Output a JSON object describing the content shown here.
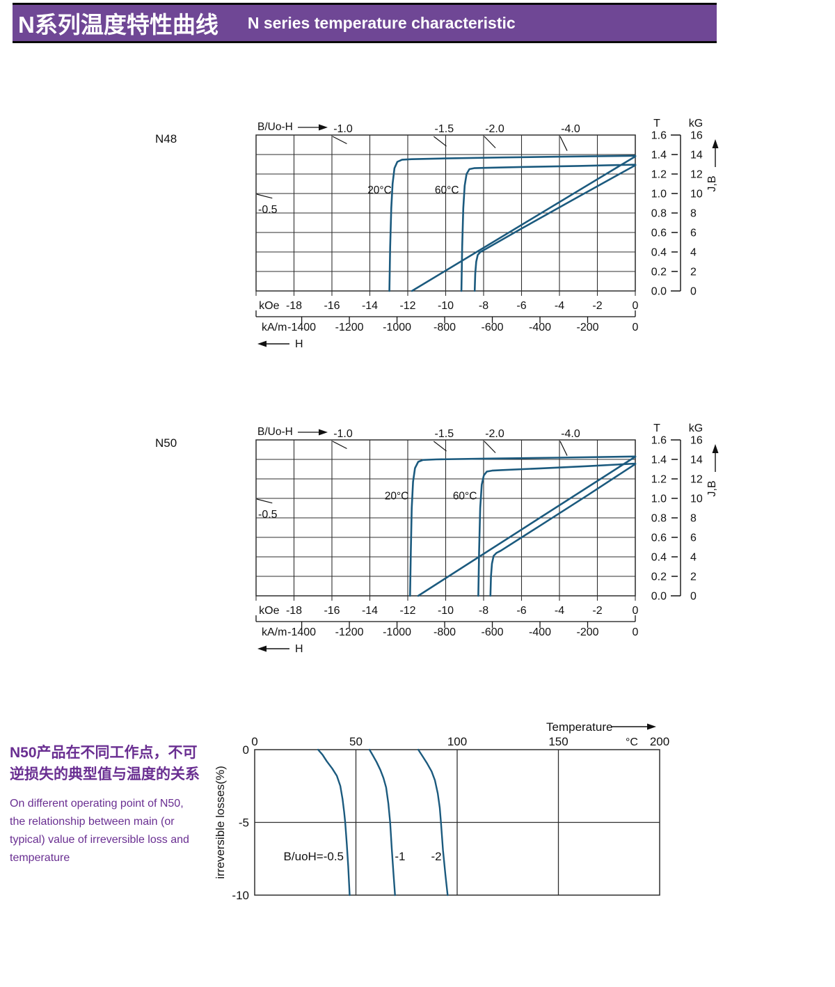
{
  "header": {
    "title_zh": "N系列温度特性曲线",
    "title_en": "N  series temperature characteristic"
  },
  "colors": {
    "banner": "#6f4795",
    "note_text": "#692e91",
    "curve": "#1b5a7e",
    "grid": "#2e2e2e",
    "ink": "#111111"
  },
  "note": {
    "zh_line1": "N50产品在不同工作点，不可",
    "zh_line2": "逆损失的典型值与温度的关系",
    "en_lines": [
      "On different operating point of N50,",
      "the relationship between main (or",
      "typical) value of irreversible loss and",
      "temperature"
    ]
  },
  "chart_data": [
    {
      "type": "line",
      "grade": "N48",
      "top_axis_label": "B/Uo-H",
      "h_axis": {
        "unit": "kOe",
        "min": -20,
        "max": 0,
        "ticks": [
          -18,
          -16,
          -14,
          -12,
          -10,
          -8,
          -6,
          -4,
          -2,
          0
        ]
      },
      "h_axis_secondary": {
        "unit": "kA/m",
        "ticks": [
          -1400,
          -1200,
          -1000,
          -800,
          -600,
          -400,
          -200,
          0
        ],
        "kOe_to_kAm": 79.5775,
        "arrow_label": "H"
      },
      "v_axis": {
        "unit": "T",
        "min": 0,
        "max": 1.6,
        "ticks": [
          "1.6",
          "1.4",
          "1.2",
          "1.0",
          "0.8",
          "0.6",
          "0.4",
          "0.2",
          "0.0"
        ]
      },
      "v_axis_secondary": {
        "unit": "kG",
        "ticks": [
          16,
          14,
          12,
          10,
          8,
          6,
          4,
          2,
          0
        ]
      },
      "v_arrow_label": "J,B",
      "load_lines": [
        {
          "label": "-0.5",
          "value": 0.5
        },
        {
          "label": "-1.0",
          "value": 1.0
        },
        {
          "label": "-1.5",
          "value": 1.5
        },
        {
          "label": "-2.0",
          "value": 2.0
        },
        {
          "label": "-4.0",
          "value": 4.0
        }
      ],
      "curve_labels": [
        {
          "text": "20°C",
          "kOe": -12.85,
          "T": 1.0
        },
        {
          "text": "60°C",
          "kOe": -9.3,
          "T": 1.0
        }
      ],
      "series": [
        {
          "name": "20°C J",
          "points": [
            [
              -12.97,
              0
            ],
            [
              -12.93,
              0.45
            ],
            [
              -12.87,
              0.85
            ],
            [
              -12.8,
              1.1
            ],
            [
              -12.7,
              1.26
            ],
            [
              -12.55,
              1.325
            ],
            [
              -12.3,
              1.347
            ],
            [
              -11.8,
              1.352
            ],
            [
              -10,
              1.36
            ],
            [
              -7,
              1.37
            ],
            [
              -4,
              1.378
            ],
            [
              0,
              1.387
            ]
          ]
        },
        {
          "name": "20°C B",
          "points": [
            [
              -11.78,
              0
            ],
            [
              0,
              1.381
            ]
          ]
        },
        {
          "name": "60°C J",
          "points": [
            [
              -9.17,
              0
            ],
            [
              -9.13,
              0.45
            ],
            [
              -9.07,
              0.85
            ],
            [
              -9.0,
              1.08
            ],
            [
              -8.9,
              1.2
            ],
            [
              -8.75,
              1.25
            ],
            [
              -8.5,
              1.26
            ],
            [
              -8.0,
              1.263
            ],
            [
              -6,
              1.272
            ],
            [
              -3,
              1.283
            ],
            [
              0,
              1.296
            ]
          ]
        },
        {
          "name": "60°C B",
          "points": [
            [
              -8.47,
              0
            ],
            [
              -8.44,
              0.18
            ],
            [
              -8.39,
              0.3
            ],
            [
              -8.31,
              0.37
            ],
            [
              -8.18,
              0.398
            ],
            [
              -8.0,
              0.418
            ],
            [
              -6,
              0.64
            ],
            [
              -3,
              0.967
            ],
            [
              0,
              1.29
            ]
          ]
        }
      ]
    },
    {
      "type": "line",
      "grade": "N50",
      "top_axis_label": "B/Uo-H",
      "h_axis": {
        "unit": "kOe",
        "min": -20,
        "max": 0,
        "ticks": [
          -18,
          -16,
          -14,
          -12,
          -10,
          -8,
          -6,
          -4,
          -2,
          0
        ]
      },
      "h_axis_secondary": {
        "unit": "kA/m",
        "ticks": [
          -1400,
          -1200,
          -1000,
          -800,
          -600,
          -400,
          -200,
          0
        ],
        "kOe_to_kAm": 79.5775,
        "arrow_label": "H"
      },
      "v_axis": {
        "unit": "T",
        "min": 0,
        "max": 1.6,
        "ticks": [
          "1.6",
          "1.4",
          "1.2",
          "1.0",
          "0.8",
          "0.6",
          "0.4",
          "0.2",
          "0.0"
        ]
      },
      "v_axis_secondary": {
        "unit": "kG",
        "ticks": [
          16,
          14,
          12,
          10,
          8,
          6,
          4,
          2,
          0
        ]
      },
      "v_arrow_label": "J,B",
      "load_lines": [
        {
          "label": "-0.5",
          "value": 0.5
        },
        {
          "label": "-1.0",
          "value": 1.0
        },
        {
          "label": "-1.5",
          "value": 1.5
        },
        {
          "label": "-2.0",
          "value": 2.0
        },
        {
          "label": "-4.0",
          "value": 4.0
        }
      ],
      "curve_labels": [
        {
          "text": "20°C",
          "kOe": -11.95,
          "T": 0.99
        },
        {
          "text": "60°C",
          "kOe": -8.35,
          "T": 0.99
        }
      ],
      "series": [
        {
          "name": "20°C J",
          "points": [
            [
              -11.88,
              0
            ],
            [
              -11.84,
              0.45
            ],
            [
              -11.79,
              0.9
            ],
            [
              -11.72,
              1.17
            ],
            [
              -11.62,
              1.31
            ],
            [
              -11.45,
              1.375
            ],
            [
              -11.2,
              1.394
            ],
            [
              -10.5,
              1.4
            ],
            [
              -8,
              1.408
            ],
            [
              -4,
              1.418
            ],
            [
              0,
              1.43
            ]
          ]
        },
        {
          "name": "20°C B",
          "points": [
            [
              -11.45,
              0
            ],
            [
              0,
              1.428
            ]
          ]
        },
        {
          "name": "60°C J",
          "points": [
            [
              -8.28,
              0
            ],
            [
              -8.24,
              0.45
            ],
            [
              -8.18,
              0.9
            ],
            [
              -8.1,
              1.14
            ],
            [
              -7.99,
              1.235
            ],
            [
              -7.83,
              1.275
            ],
            [
              -7.55,
              1.285
            ],
            [
              -7.0,
              1.291
            ],
            [
              -5,
              1.308
            ],
            [
              -2.5,
              1.331
            ],
            [
              0,
              1.357
            ]
          ]
        },
        {
          "name": "60°C B",
          "points": [
            [
              -7.64,
              0
            ],
            [
              -7.61,
              0.2
            ],
            [
              -7.56,
              0.33
            ],
            [
              -7.47,
              0.41
            ],
            [
              -7.32,
              0.44
            ],
            [
              -7.1,
              0.462
            ],
            [
              -5,
              0.723
            ],
            [
              -2.5,
              1.034
            ],
            [
              0,
              1.352
            ]
          ]
        }
      ]
    },
    {
      "type": "line",
      "x_axis": {
        "label": "Temperature",
        "unit": "°C",
        "min": 0,
        "max": 200,
        "ticks": [
          0,
          50,
          100,
          150,
          200
        ]
      },
      "y_axis": {
        "label": "irreversible  losses(%)",
        "min": -10,
        "max": 0,
        "ticks": [
          "0",
          "-5",
          "-10"
        ]
      },
      "curve_labels": [
        {
          "text": "B/uoH=-0.5",
          "x": 44,
          "y": -7.6,
          "anchor": "end"
        },
        {
          "text": "-1",
          "x": 71.8,
          "y": -7.6,
          "anchor": "middle"
        },
        {
          "text": "-2",
          "x": 89.7,
          "y": -7.6,
          "anchor": "middle"
        }
      ],
      "series": [
        {
          "name": "B/uoH=-0.5",
          "points": [
            [
              31.3,
              0
            ],
            [
              33.5,
              -0.35
            ],
            [
              35.6,
              -0.8
            ],
            [
              38.3,
              -1.3
            ],
            [
              40.6,
              -1.8
            ],
            [
              42.3,
              -2.5
            ],
            [
              43.4,
              -3.4
            ],
            [
              44.2,
              -4.3
            ],
            [
              44.7,
              -5.0
            ],
            [
              45.5,
              -6.5
            ],
            [
              46.2,
              -8.0
            ],
            [
              46.9,
              -10
            ]
          ]
        },
        {
          "name": "-1",
          "points": [
            [
              56.7,
              0
            ],
            [
              58.4,
              -0.4
            ],
            [
              60.2,
              -0.85
            ],
            [
              62.1,
              -1.4
            ],
            [
              63.6,
              -1.95
            ],
            [
              64.9,
              -2.6
            ],
            [
              66.0,
              -3.7
            ],
            [
              66.9,
              -5.0
            ],
            [
              67.7,
              -6.8
            ],
            [
              68.5,
              -8.4
            ],
            [
              69.3,
              -10
            ]
          ]
        },
        {
          "name": "-2",
          "points": [
            [
              80.8,
              0
            ],
            [
              82.9,
              -0.45
            ],
            [
              85.2,
              -0.95
            ],
            [
              87.4,
              -1.5
            ],
            [
              89.0,
              -2.1
            ],
            [
              90.4,
              -3.0
            ],
            [
              91.4,
              -4.0
            ],
            [
              92.0,
              -5.0
            ],
            [
              93.0,
              -6.9
            ],
            [
              94.2,
              -8.6
            ],
            [
              95.3,
              -10
            ]
          ]
        }
      ]
    }
  ]
}
